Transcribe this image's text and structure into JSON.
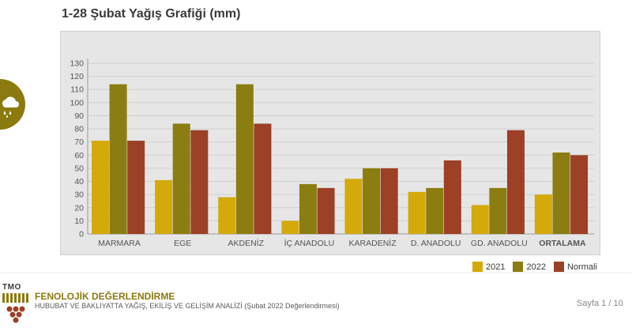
{
  "page": {
    "title": "1-28 Şubat Yağış Grafiği (mm)"
  },
  "icons": {
    "weather": "rain-cloud-icon"
  },
  "colors": {
    "panel_bg": "#e6e6e6",
    "grid": "#cfcfcf",
    "accent": "#8b7a10"
  },
  "chart_data": {
    "type": "bar",
    "categories": [
      "MARMARA",
      "EGE",
      "AKDENİZ",
      "İÇ ANADOLU",
      "KARADENİZ",
      "D. ANADOLU",
      "GD. ANADOLU",
      "ORTALAMA"
    ],
    "series": [
      {
        "name": "2021",
        "color": "#d4a90a",
        "values": [
          71,
          41,
          28,
          10,
          42,
          32,
          22,
          30
        ]
      },
      {
        "name": "2022",
        "color": "#8b7d11",
        "values": [
          114,
          84,
          114,
          38,
          50,
          35,
          35,
          62
        ]
      },
      {
        "name": "Normali",
        "color": "#9c4026",
        "values": [
          71,
          79,
          84,
          35,
          50,
          56,
          79,
          60
        ]
      }
    ],
    "yticks": [
      "0",
      "10",
      "20",
      "30",
      "40",
      "50",
      "60",
      "70",
      "80",
      "90",
      "100",
      "110",
      "120",
      "130"
    ],
    "ylim": [
      0,
      130
    ],
    "grid": true,
    "legend_position": "bottom-right",
    "bold_category": "ORTALAMA"
  },
  "footer": {
    "logo_text": "TMO",
    "title": "FENOLOJİK DEĞERLENDİRME",
    "subtitle": "HUBUBAT VE BAKLIYATTA YAĞIŞ, EKİLİŞ VE GELİŞİM ANALİZİ (Şubat 2022 Değerlendirmesi)",
    "page": "Sayfa 1 / 10"
  }
}
